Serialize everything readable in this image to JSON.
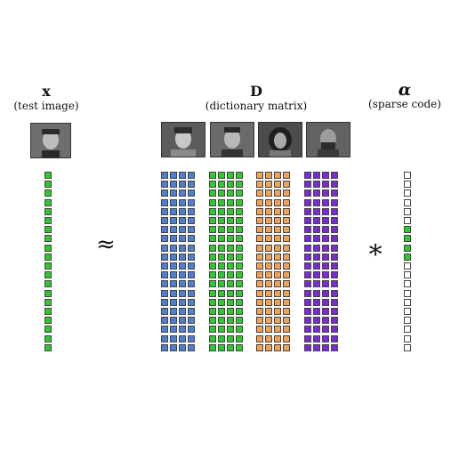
{
  "x": {
    "symbol": "x",
    "caption": "(test image)"
  },
  "D": {
    "symbol": "D",
    "caption": "(dictionary matrix)"
  },
  "alpha": {
    "symbol": "α",
    "caption": "(sparse code)"
  },
  "approx_symbol": "≈",
  "times_symbol": "∗",
  "rows_per_column": 20,
  "colors": {
    "blue": "#4f7fd3",
    "green": "#2fc92f",
    "orange": "#f0a156",
    "purple": "#7c2bd4",
    "empty": "#ffffff",
    "border": "#444444"
  },
  "dictionary_groups": [
    "blue",
    "green",
    "orange",
    "purple"
  ],
  "columns_per_group": 4,
  "x_color": "green",
  "alpha_active_rows": [
    6,
    7,
    8,
    9
  ],
  "alpha_active_color": "green"
}
